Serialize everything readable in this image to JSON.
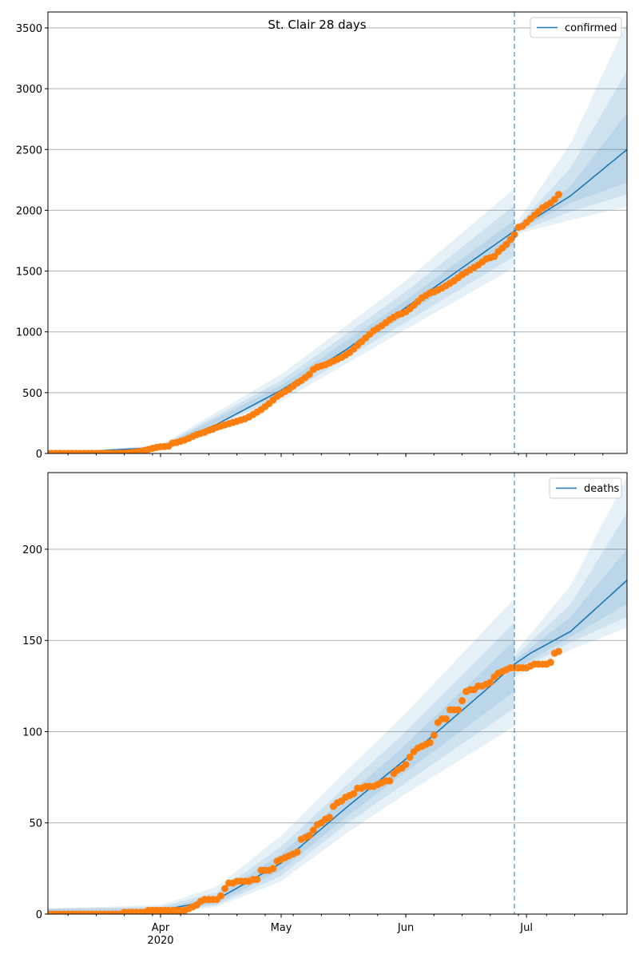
{
  "title": "St. Clair 28 days",
  "chart_data": [
    {
      "type": "line",
      "name": "confirmed",
      "x_units": "days since 2020-03-04",
      "xlim": [
        0,
        144
      ],
      "ylim": [
        0,
        3631
      ],
      "yticks": [
        0,
        500,
        1000,
        1500,
        2000,
        2500,
        3000,
        3500
      ],
      "grid": "y",
      "legend": {
        "label": "confirmed",
        "placement": "top-right"
      },
      "forecast_start_day": 116,
      "median": [
        [
          0,
          0
        ],
        [
          28,
          50
        ],
        [
          42,
          240
        ],
        [
          58,
          520
        ],
        [
          74,
          850
        ],
        [
          89,
          1200
        ],
        [
          116,
          1830
        ],
        [
          130,
          2120
        ],
        [
          144,
          2500
        ]
      ],
      "bands_fit": [
        [
          0,
          0,
          0,
          0,
          0,
          0,
          0
        ],
        [
          28,
          40,
          45,
          48,
          55,
          60,
          70
        ],
        [
          58,
          430,
          460,
          490,
          560,
          600,
          650
        ],
        [
          89,
          1020,
          1080,
          1140,
          1260,
          1330,
          1420
        ],
        [
          116,
          1530,
          1620,
          1720,
          1920,
          2040,
          2180
        ]
      ],
      "bands_forecast": [
        [
          116,
          1800,
          1810,
          1820,
          1840,
          1850,
          1870
        ],
        [
          130,
          1920,
          1990,
          2060,
          2200,
          2350,
          2550
        ],
        [
          144,
          2030,
          2130,
          2230,
          2800,
          3150,
          3550
        ]
      ],
      "observed": [
        1,
        1,
        1,
        1,
        1,
        1,
        1,
        1,
        1,
        1,
        1,
        1,
        1,
        1,
        1,
        1,
        1,
        1,
        2,
        3,
        5,
        8,
        12,
        18,
        25,
        33,
        42,
        50,
        55,
        57,
        60,
        85,
        90,
        100,
        110,
        125,
        140,
        155,
        165,
        175,
        190,
        200,
        215,
        225,
        235,
        245,
        255,
        265,
        275,
        285,
        300,
        320,
        340,
        360,
        385,
        410,
        440,
        470,
        490,
        510,
        530,
        555,
        580,
        600,
        625,
        650,
        690,
        710,
        720,
        730,
        745,
        760,
        775,
        790,
        810,
        830,
        860,
        890,
        920,
        950,
        980,
        1010,
        1030,
        1050,
        1075,
        1100,
        1120,
        1140,
        1150,
        1165,
        1190,
        1220,
        1250,
        1280,
        1300,
        1320,
        1330,
        1345,
        1360,
        1380,
        1400,
        1420,
        1445,
        1470,
        1490,
        1510,
        1530,
        1550,
        1575,
        1600,
        1610,
        1620,
        1660,
        1690,
        1720,
        1760,
        1800,
        1860,
        1870,
        1900,
        1930,
        1960,
        1990,
        2020,
        2040,
        2060,
        2090,
        2130
      ]
    },
    {
      "type": "line",
      "name": "deaths",
      "x_units": "days since 2020-03-04",
      "xlim": [
        0,
        144
      ],
      "ylim": [
        0,
        242
      ],
      "yticks": [
        0,
        50,
        100,
        150,
        200
      ],
      "grid": "y",
      "legend": {
        "label": "deaths",
        "placement": "top-right"
      },
      "forecast_start_day": 116,
      "median": [
        [
          0,
          0
        ],
        [
          28,
          2
        ],
        [
          42,
          8
        ],
        [
          58,
          28
        ],
        [
          74,
          58
        ],
        [
          89,
          85
        ],
        [
          110,
          125
        ],
        [
          116,
          137
        ],
        [
          120,
          143
        ],
        [
          130,
          155
        ],
        [
          144,
          183
        ]
      ],
      "bands_fit": [
        [
          0,
          0,
          0,
          0,
          3,
          3,
          3
        ],
        [
          28,
          0,
          1,
          1,
          3,
          4,
          5
        ],
        [
          42,
          4,
          5,
          6,
          10,
          12,
          15
        ],
        [
          58,
          18,
          21,
          24,
          33,
          37,
          43
        ],
        [
          74,
          44,
          49,
          53,
          64,
          70,
          78
        ],
        [
          89,
          66,
          72,
          78,
          93,
          100,
          110
        ],
        [
          116,
          103,
          113,
          122,
          150,
          160,
          173
        ]
      ],
      "bands_forecast": [
        [
          116,
          130,
          132,
          134,
          139,
          141,
          143
        ],
        [
          130,
          145,
          149,
          152,
          163,
          170,
          180
        ],
        [
          144,
          157,
          163,
          170,
          200,
          220,
          240
        ]
      ],
      "observed": [
        0,
        0,
        0,
        0,
        0,
        0,
        0,
        0,
        0,
        0,
        0,
        0,
        0,
        0,
        0,
        0,
        0,
        0,
        0,
        1,
        1,
        1,
        1,
        1,
        1,
        2,
        2,
        2,
        2,
        2,
        2,
        2,
        2,
        2,
        2,
        3,
        4,
        5,
        7,
        8,
        8,
        8,
        8,
        10,
        14,
        17,
        17,
        18,
        18,
        18,
        18,
        19,
        19,
        24,
        24,
        24,
        25,
        29,
        30,
        31,
        32,
        33,
        34,
        41,
        42,
        43,
        46,
        49,
        50,
        52,
        53,
        59,
        61,
        62,
        64,
        65,
        66,
        69,
        69,
        70,
        70,
        70,
        71,
        72,
        73,
        73,
        77,
        79,
        80,
        82,
        86,
        89,
        91,
        92,
        93,
        94,
        98,
        105,
        107,
        107,
        112,
        112,
        112,
        117,
        122,
        123,
        123,
        125,
        125,
        126,
        127,
        130,
        132,
        133,
        134,
        135,
        135,
        135,
        135,
        135,
        136,
        137,
        137,
        137,
        137,
        138,
        143,
        144
      ]
    }
  ],
  "x_axis": {
    "major_ticks": [
      {
        "day": 28,
        "label": "Apr"
      },
      {
        "day": 58,
        "label": "May"
      },
      {
        "day": 89,
        "label": "Jun"
      },
      {
        "day": 119,
        "label": "Jul"
      }
    ],
    "year_label": "2020",
    "minor_tick_start_day": 5,
    "minor_tick_step_days": 7
  },
  "colors": {
    "model": "#1f77b4",
    "observed": "#ff7f0e",
    "band": "#1f77b4",
    "grid": "#b0b0b0"
  }
}
